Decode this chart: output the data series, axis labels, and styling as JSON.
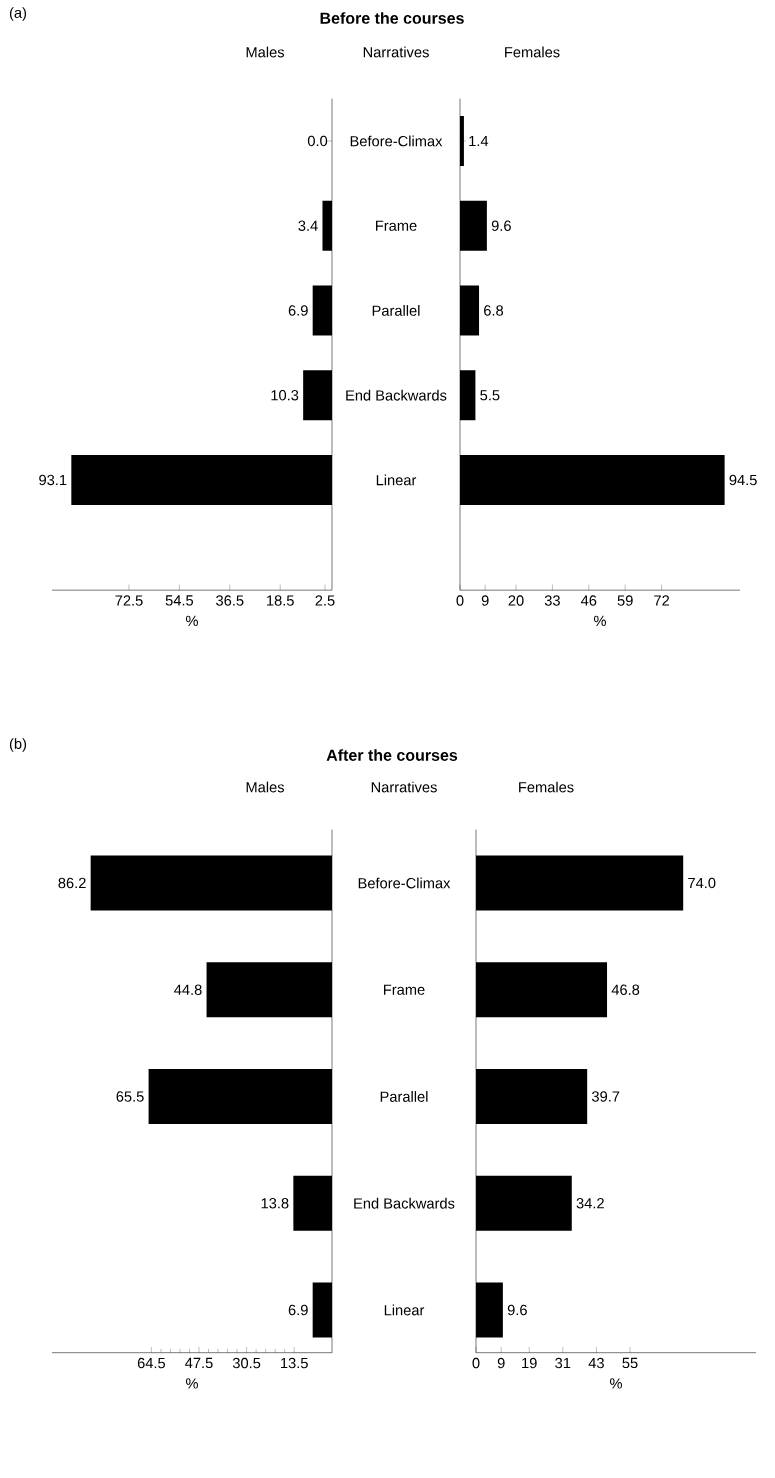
{
  "chart_data": [
    {
      "type": "bar",
      "orientation": "horizontal",
      "title": "Before the courses",
      "subtitle": "Males",
      "ylabel": "Narratives",
      "annotations": [
        "(a)"
      ],
      "categories": [
        "Before-Climax",
        "Frame",
        "Parallel",
        "End Backwards",
        "Linear"
      ],
      "values": [
        0.0,
        3.4,
        6.9,
        10.3,
        93.1
      ],
      "value_labels": [
        "0.0",
        "3.4",
        "6.9",
        "10.3",
        "93.1"
      ],
      "color": "#000000",
      "xlim": [
        100,
        0
      ],
      "xticks": [
        72.5,
        54.5,
        36.5,
        18.5,
        2.5
      ],
      "xlabel": "%"
    },
    {
      "type": "bar",
      "orientation": "horizontal",
      "subtitle": "Females",
      "categories": [
        null,
        null,
        null,
        null,
        null
      ],
      "values": [
        1.4,
        9.6,
        6.8,
        5.5,
        94.5
      ],
      "value_labels": [
        "1.4",
        "9.6",
        "6.8",
        "5.5",
        "94.5"
      ],
      "color": "#000000",
      "xlim": [
        0,
        100
      ],
      "xticks": [
        0,
        9,
        20,
        33,
        46,
        59,
        72
      ],
      "xlabel": "%",
      "tick_labels": "x"
    },
    {
      "type": "bar",
      "orientation": "horizontal",
      "title": "After the courses",
      "subtitle": "Males",
      "ylabel": "Narratives",
      "annotations": [
        "(b)"
      ],
      "categories": [
        "Before-Climax",
        "Frame",
        "Parallel",
        "End Backwards",
        "Linear"
      ],
      "values": [
        86.2,
        44.8,
        65.5,
        13.8,
        6.9
      ],
      "value_labels": [
        "86.2",
        "44.8",
        "65.5",
        "13.8",
        "6.9"
      ],
      "color": "#000000",
      "xlim": [
        100,
        0
      ],
      "xticks": [
        64.5,
        47.5,
        30.5,
        13.5
      ],
      "xlabel": "%"
    },
    {
      "type": "bar",
      "orientation": "horizontal",
      "subtitle": "Females",
      "categories": [
        null,
        null,
        null,
        null,
        null
      ],
      "values": [
        74.0,
        46.8,
        39.7,
        34.2,
        9.6
      ],
      "value_labels": [
        "74.0",
        "46.8",
        "39.7",
        "34.2",
        "9.6"
      ],
      "color": "#000000",
      "xlim": [
        0,
        100
      ],
      "xticks": [
        0,
        9,
        19,
        31,
        43,
        55
      ],
      "xlabel": "%",
      "tick_labels": "x"
    }
  ]
}
